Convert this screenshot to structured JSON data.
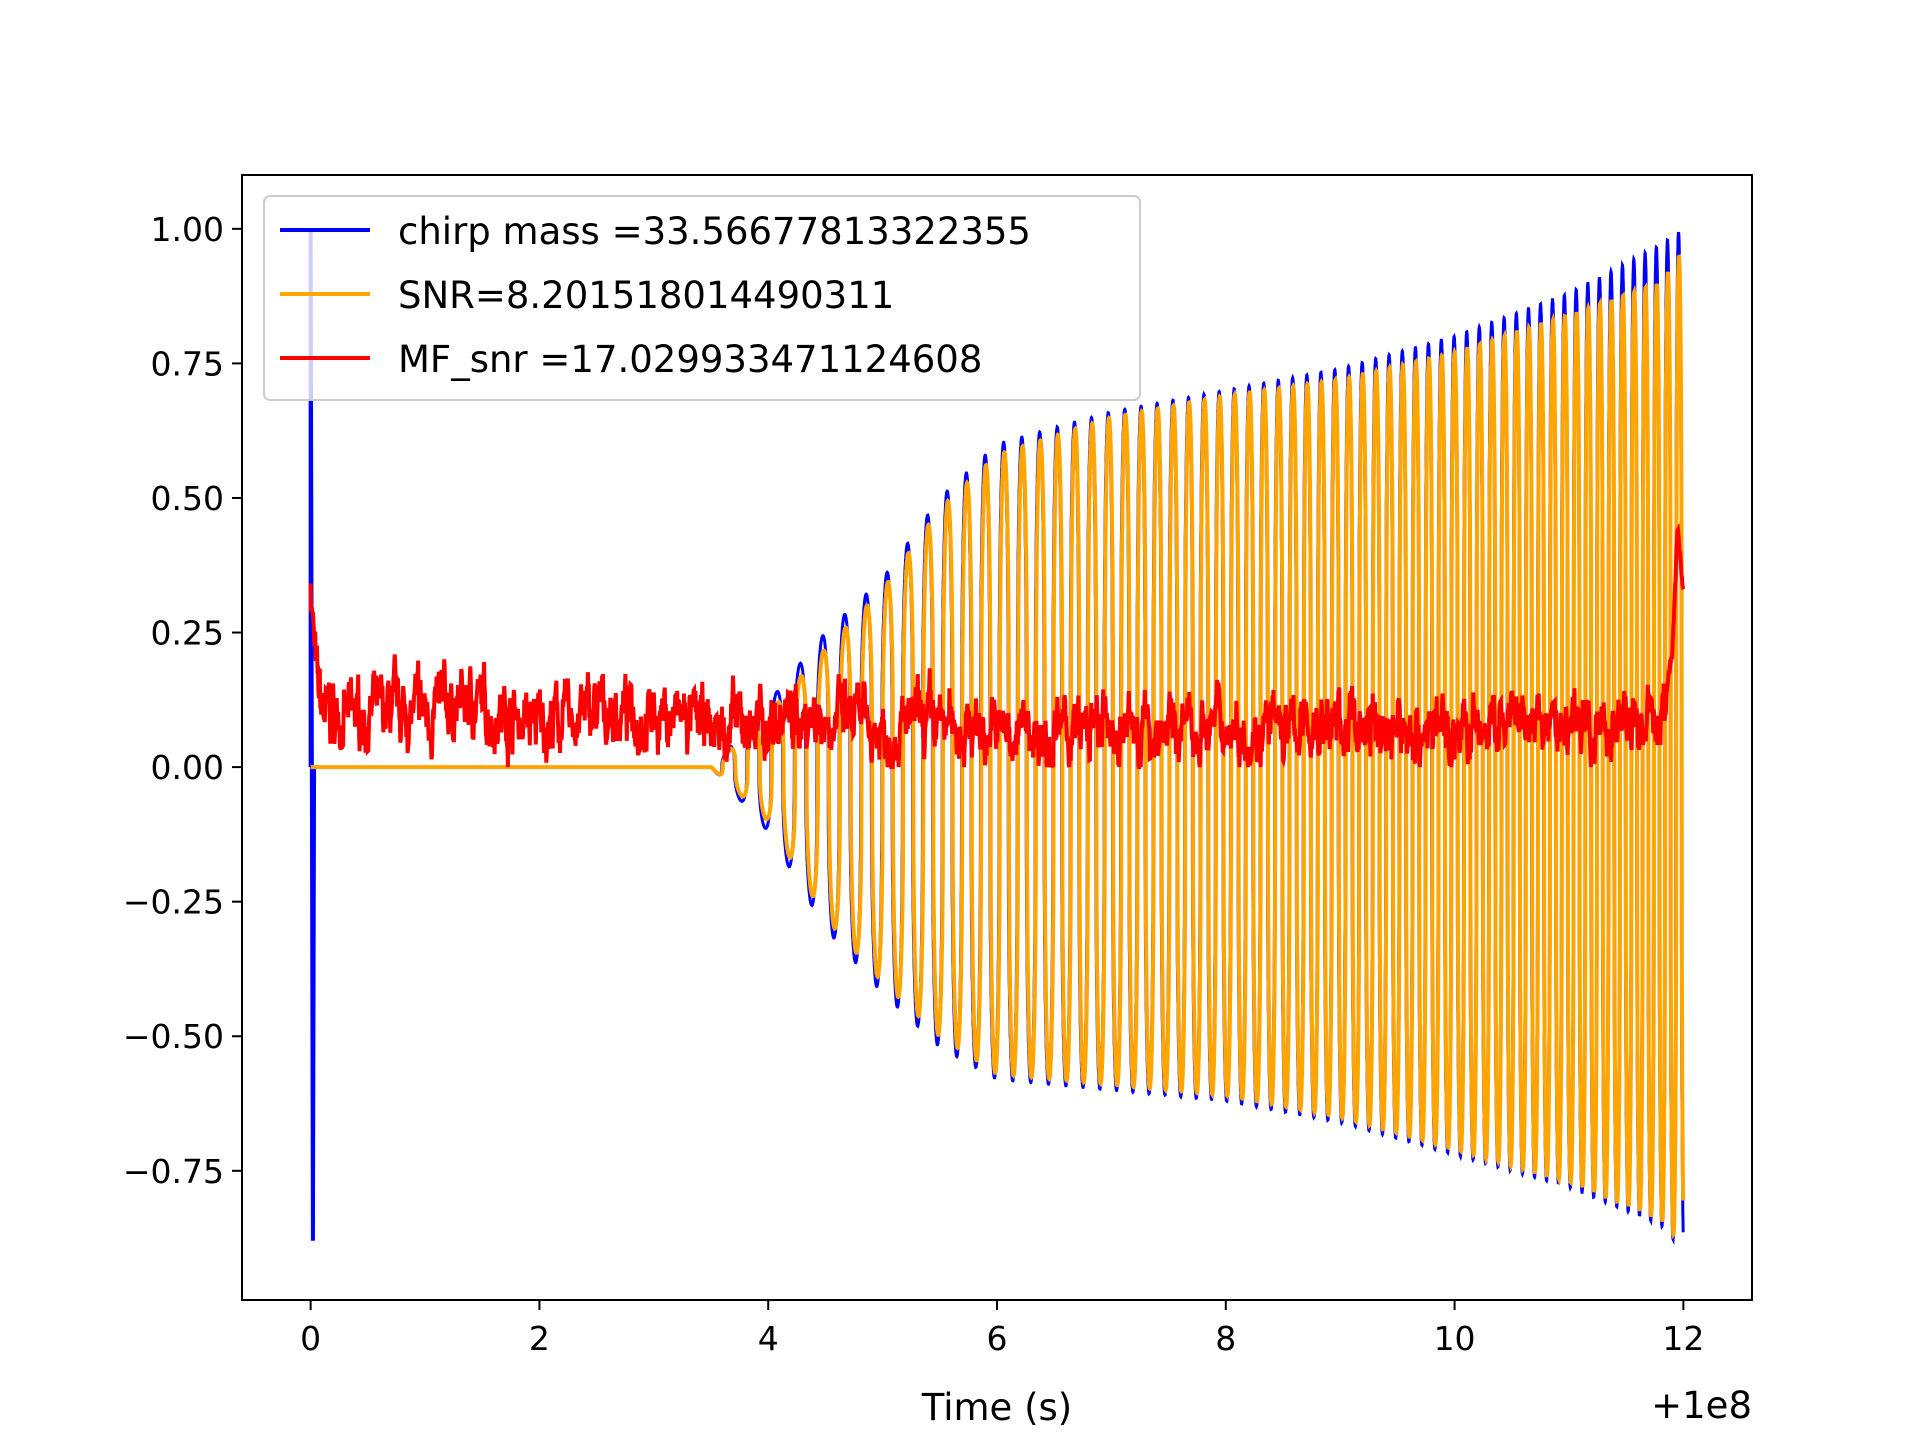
{
  "chart_data": {
    "type": "line",
    "title": "",
    "xlabel": "Time (s)",
    "ylabel": "",
    "x_offset_label": "+1e8",
    "xlim": [
      -0.6,
      12.6
    ],
    "ylim": [
      -0.99,
      1.1
    ],
    "x_ticks": [
      0,
      2,
      4,
      6,
      8,
      10,
      12
    ],
    "x_tick_labels": [
      "0",
      "2",
      "4",
      "6",
      "8",
      "10",
      "12"
    ],
    "y_ticks": [
      1.0,
      0.75,
      0.5,
      0.25,
      0.0,
      -0.25,
      -0.5,
      -0.75
    ],
    "y_tick_labels": [
      "1.00",
      "0.75",
      "0.50",
      "0.25",
      "0.00",
      "−0.25",
      "−0.50",
      "−0.75"
    ],
    "grid": false,
    "legend_position": "top-left",
    "series": [
      {
        "name": "chirp mass =33.56677813322355",
        "color": "#0000ff",
        "description": "normalized chirp template; starts at 0 with a spike to 1.0 and -0.88, oscillation grows from ~3.5 s to end at 12 s",
        "start_spike": {
          "x": [
            0.0,
            0.02
          ],
          "y": [
            1.0,
            -0.88
          ]
        },
        "envelope": {
          "x": [
            0.0,
            3.5,
            4.0,
            4.5,
            5.0,
            5.5,
            6.0,
            7.0,
            8.0,
            9.0,
            10.0,
            11.0,
            11.8,
            12.0
          ],
          "upper": [
            0.0,
            0.0,
            0.12,
            0.25,
            0.35,
            0.5,
            0.6,
            0.66,
            0.7,
            0.74,
            0.8,
            0.88,
            0.97,
            1.0
          ],
          "lower": [
            0.0,
            0.0,
            -0.12,
            -0.3,
            -0.42,
            -0.52,
            -0.58,
            -0.6,
            -0.62,
            -0.66,
            -0.72,
            -0.78,
            -0.85,
            -0.9
          ]
        }
      },
      {
        "name": "SNR=8.201518014490311",
        "color": "#ffa500",
        "description": "signal with noise; zero until ~3.5 s then oscillating with growing amplitude up to 12 s",
        "envelope": {
          "x": [
            0.0,
            3.5,
            4.0,
            4.5,
            5.0,
            5.5,
            6.0,
            7.0,
            8.0,
            9.0,
            10.0,
            11.0,
            11.8,
            12.0
          ],
          "upper": [
            0.0,
            0.0,
            0.1,
            0.22,
            0.33,
            0.48,
            0.58,
            0.65,
            0.69,
            0.72,
            0.77,
            0.84,
            0.9,
            0.96
          ],
          "lower": [
            0.0,
            0.0,
            -0.1,
            -0.28,
            -0.4,
            -0.5,
            -0.57,
            -0.59,
            -0.61,
            -0.65,
            -0.71,
            -0.77,
            -0.84,
            -0.89
          ]
        }
      },
      {
        "name": "MF_snr =17.029933471124608",
        "color": "#ff0000",
        "description": "matched-filter SNR; noisy band around 0.05-0.15 with peaks at start (0.35) and end (0.5)",
        "x": [
          0.0,
          0.05,
          0.1,
          0.3,
          0.6,
          1.0,
          1.4,
          2.0,
          2.5,
          3.0,
          3.5,
          4.0,
          4.4,
          5.0,
          5.5,
          6.0,
          6.5,
          7.0,
          7.5,
          8.0,
          8.5,
          9.0,
          9.5,
          10.0,
          10.5,
          11.0,
          11.5,
          11.8,
          11.9,
          11.95,
          12.0
        ],
        "y": [
          0.35,
          0.15,
          0.1,
          0.09,
          0.1,
          0.1,
          0.12,
          0.08,
          0.1,
          0.1,
          0.07,
          0.08,
          0.1,
          0.07,
          0.08,
          0.07,
          0.06,
          0.07,
          0.07,
          0.08,
          0.07,
          0.08,
          0.07,
          0.07,
          0.07,
          0.08,
          0.08,
          0.08,
          0.2,
          0.45,
          0.33
        ]
      }
    ]
  }
}
